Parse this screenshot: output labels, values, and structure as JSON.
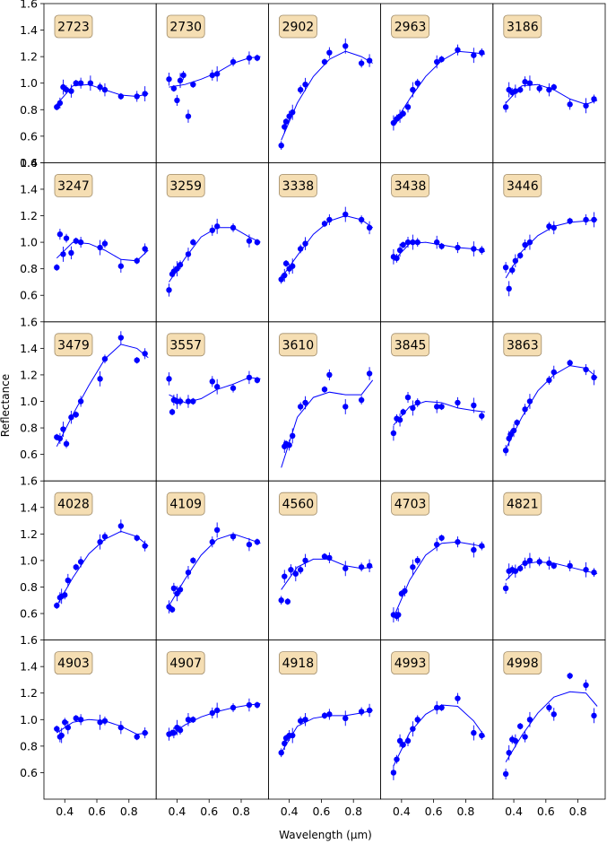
{
  "figure": {
    "xlabel": "Wavelength (μm)",
    "ylabel": "Reflectance"
  },
  "axes": {
    "xlim": [
      0.27,
      0.97
    ],
    "ylim": [
      0.4,
      1.6
    ],
    "xticks": [
      0.4,
      0.6,
      0.8
    ],
    "xtick_labels": [
      "0.4",
      "0.6",
      "0.8"
    ],
    "yticks": [
      0.4,
      0.6,
      0.8,
      1.0,
      1.2,
      1.4,
      1.6
    ],
    "ytick_labels": [
      "0.4",
      "0.6",
      "0.8",
      "1.0",
      "1.2",
      "1.4",
      "1.6"
    ],
    "grid": false,
    "layout": "5x5 grid of panels, shared axes"
  },
  "colors": {
    "data": "#0000ff",
    "label_box_fill": "#f5deb3",
    "label_box_stroke": "#a08c6a"
  },
  "chart_data": [
    {
      "type": "scatter",
      "title": "2723",
      "x": [
        0.35,
        0.37,
        0.39,
        0.41,
        0.44,
        0.47,
        0.5,
        0.56,
        0.62,
        0.65,
        0.75,
        0.85,
        0.9
      ],
      "y": [
        0.82,
        0.85,
        0.97,
        0.95,
        0.94,
        1.0,
        1.0,
        1.0,
        0.97,
        0.95,
        0.9,
        0.9,
        0.92
      ],
      "model": {
        "x": [
          0.35,
          0.45,
          0.55,
          0.65,
          0.75,
          0.85,
          0.92
        ],
        "y": [
          0.84,
          0.98,
          0.99,
          0.95,
          0.91,
          0.9,
          0.92
        ]
      }
    },
    {
      "type": "scatter",
      "title": "2730",
      "x": [
        0.35,
        0.38,
        0.4,
        0.42,
        0.44,
        0.47,
        0.5,
        0.62,
        0.65,
        0.75,
        0.85,
        0.9
      ],
      "y": [
        1.03,
        0.96,
        0.87,
        1.02,
        1.06,
        0.75,
        0.99,
        1.06,
        1.07,
        1.16,
        1.19,
        1.19
      ],
      "model": {
        "x": [
          0.35,
          0.45,
          0.55,
          0.65,
          0.75,
          0.85,
          0.92
        ],
        "y": [
          0.97,
          0.99,
          1.03,
          1.08,
          1.15,
          1.19,
          1.2
        ]
      }
    },
    {
      "type": "scatter",
      "title": "2902",
      "x": [
        0.35,
        0.37,
        0.38,
        0.4,
        0.42,
        0.47,
        0.5,
        0.62,
        0.65,
        0.75,
        0.85,
        0.9
      ],
      "y": [
        0.53,
        0.67,
        0.71,
        0.75,
        0.78,
        0.95,
        0.99,
        1.16,
        1.23,
        1.28,
        1.15,
        1.17
      ],
      "model": {
        "x": [
          0.35,
          0.45,
          0.55,
          0.65,
          0.75,
          0.85,
          0.92
        ],
        "y": [
          0.57,
          0.85,
          1.05,
          1.18,
          1.24,
          1.2,
          1.15
        ]
      }
    },
    {
      "type": "scatter",
      "title": "2963",
      "x": [
        0.35,
        0.37,
        0.39,
        0.41,
        0.44,
        0.47,
        0.5,
        0.62,
        0.65,
        0.75,
        0.85,
        0.9
      ],
      "y": [
        0.7,
        0.73,
        0.75,
        0.77,
        0.82,
        0.95,
        1.0,
        1.16,
        1.18,
        1.25,
        1.21,
        1.23
      ],
      "model": {
        "x": [
          0.35,
          0.45,
          0.55,
          0.65,
          0.75,
          0.85,
          0.92
        ],
        "y": [
          0.69,
          0.88,
          1.05,
          1.17,
          1.24,
          1.23,
          1.22
        ]
      }
    },
    {
      "type": "scatter",
      "title": "3186",
      "x": [
        0.35,
        0.37,
        0.39,
        0.41,
        0.44,
        0.47,
        0.5,
        0.56,
        0.62,
        0.65,
        0.75,
        0.85,
        0.9
      ],
      "y": [
        0.82,
        0.95,
        0.93,
        0.94,
        0.95,
        1.01,
        1.0,
        0.96,
        0.95,
        0.97,
        0.84,
        0.83,
        0.88
      ],
      "model": {
        "x": [
          0.35,
          0.45,
          0.55,
          0.65,
          0.75,
          0.85,
          0.92
        ],
        "y": [
          0.85,
          0.98,
          0.99,
          0.95,
          0.88,
          0.84,
          0.87
        ]
      }
    },
    {
      "type": "scatter",
      "title": "3247",
      "x": [
        0.35,
        0.37,
        0.39,
        0.41,
        0.44,
        0.47,
        0.5,
        0.62,
        0.65,
        0.75,
        0.85,
        0.9
      ],
      "y": [
        0.81,
        1.06,
        0.91,
        1.03,
        0.92,
        1.01,
        1.0,
        0.96,
        0.99,
        0.82,
        0.86,
        0.95
      ],
      "model": {
        "x": [
          0.35,
          0.45,
          0.55,
          0.65,
          0.75,
          0.85,
          0.92
        ],
        "y": [
          0.88,
          1.0,
          0.99,
          0.94,
          0.87,
          0.86,
          0.94
        ]
      }
    },
    {
      "type": "scatter",
      "title": "3259",
      "x": [
        0.35,
        0.37,
        0.38,
        0.4,
        0.42,
        0.47,
        0.5,
        0.62,
        0.65,
        0.75,
        0.85,
        0.9
      ],
      "y": [
        0.64,
        0.76,
        0.78,
        0.8,
        0.83,
        0.91,
        1.0,
        1.09,
        1.12,
        1.11,
        1.01,
        1.0
      ],
      "model": {
        "x": [
          0.35,
          0.45,
          0.55,
          0.65,
          0.75,
          0.85,
          0.92
        ],
        "y": [
          0.7,
          0.88,
          1.04,
          1.11,
          1.11,
          1.04,
          1.0
        ]
      }
    },
    {
      "type": "scatter",
      "title": "3338",
      "x": [
        0.35,
        0.37,
        0.38,
        0.4,
        0.42,
        0.47,
        0.5,
        0.62,
        0.65,
        0.75,
        0.85,
        0.9
      ],
      "y": [
        0.72,
        0.75,
        0.84,
        0.8,
        0.82,
        0.95,
        0.99,
        1.14,
        1.17,
        1.21,
        1.17,
        1.11
      ],
      "model": {
        "x": [
          0.35,
          0.45,
          0.55,
          0.65,
          0.75,
          0.85,
          0.92
        ],
        "y": [
          0.73,
          0.9,
          1.06,
          1.16,
          1.2,
          1.17,
          1.11
        ]
      }
    },
    {
      "type": "scatter",
      "title": "3438",
      "x": [
        0.35,
        0.37,
        0.39,
        0.41,
        0.44,
        0.47,
        0.5,
        0.62,
        0.65,
        0.75,
        0.85,
        0.9
      ],
      "y": [
        0.89,
        0.88,
        0.94,
        0.98,
        1.0,
        1.0,
        1.0,
        1.0,
        0.97,
        0.96,
        0.95,
        0.94
      ],
      "model": {
        "x": [
          0.35,
          0.45,
          0.55,
          0.65,
          0.75,
          0.85,
          0.92
        ],
        "y": [
          0.86,
          0.99,
          1.0,
          0.98,
          0.96,
          0.95,
          0.93
        ]
      }
    },
    {
      "type": "scatter",
      "title": "3446",
      "x": [
        0.35,
        0.37,
        0.39,
        0.41,
        0.44,
        0.47,
        0.5,
        0.62,
        0.65,
        0.75,
        0.85,
        0.9
      ],
      "y": [
        0.81,
        0.65,
        0.79,
        0.86,
        0.9,
        0.98,
        1.0,
        1.12,
        1.11,
        1.16,
        1.17,
        1.17
      ],
      "model": {
        "x": [
          0.35,
          0.45,
          0.55,
          0.65,
          0.75,
          0.85,
          0.92
        ],
        "y": [
          0.73,
          0.93,
          1.05,
          1.12,
          1.15,
          1.16,
          1.17
        ]
      }
    },
    {
      "type": "scatter",
      "title": "3479",
      "x": [
        0.35,
        0.37,
        0.39,
        0.41,
        0.44,
        0.47,
        0.5,
        0.62,
        0.65,
        0.75,
        0.85,
        0.9
      ],
      "y": [
        0.73,
        0.72,
        0.79,
        0.68,
        0.88,
        0.9,
        1.0,
        1.17,
        1.32,
        1.48,
        1.31,
        1.36
      ],
      "model": {
        "x": [
          0.35,
          0.45,
          0.55,
          0.65,
          0.75,
          0.85,
          0.92
        ],
        "y": [
          0.66,
          0.9,
          1.12,
          1.32,
          1.43,
          1.4,
          1.33
        ]
      }
    },
    {
      "type": "scatter",
      "title": "3557",
      "x": [
        0.35,
        0.37,
        0.38,
        0.4,
        0.42,
        0.47,
        0.5,
        0.62,
        0.65,
        0.75,
        0.85,
        0.9
      ],
      "y": [
        1.17,
        0.92,
        1.01,
        1.0,
        1.0,
        1.0,
        1.0,
        1.15,
        1.11,
        1.1,
        1.18,
        1.16
      ],
      "model": {
        "x": [
          0.35,
          0.45,
          0.55,
          0.65,
          0.75,
          0.85,
          0.92
        ],
        "y": [
          1.05,
          0.99,
          1.02,
          1.09,
          1.13,
          1.18,
          1.17
        ]
      }
    },
    {
      "type": "scatter",
      "title": "3610",
      "x": [
        0.35,
        0.37,
        0.38,
        0.4,
        0.42,
        0.47,
        0.5,
        0.62,
        0.65,
        0.75,
        0.85,
        0.9
      ],
      "y": [
        0.35,
        0.66,
        0.68,
        0.67,
        0.74,
        0.96,
        0.99,
        1.09,
        1.2,
        0.96,
        1.01,
        1.21
      ],
      "model": {
        "x": [
          0.35,
          0.45,
          0.55,
          0.65,
          0.75,
          0.85,
          0.92
        ],
        "y": [
          0.5,
          0.88,
          1.03,
          1.07,
          1.05,
          1.05,
          1.16
        ]
      }
    },
    {
      "type": "scatter",
      "title": "3845",
      "x": [
        0.35,
        0.37,
        0.39,
        0.41,
        0.44,
        0.47,
        0.5,
        0.62,
        0.65,
        0.75,
        0.85,
        0.9
      ],
      "y": [
        0.76,
        0.87,
        0.86,
        0.92,
        1.03,
        0.95,
        0.99,
        0.96,
        0.96,
        0.99,
        0.97,
        0.89
      ],
      "model": {
        "x": [
          0.35,
          0.45,
          0.55,
          0.65,
          0.75,
          0.85,
          0.92
        ],
        "y": [
          0.82,
          0.96,
          1.0,
          0.99,
          0.95,
          0.93,
          0.92
        ]
      }
    },
    {
      "type": "scatter",
      "title": "3863",
      "x": [
        0.35,
        0.37,
        0.38,
        0.4,
        0.42,
        0.47,
        0.5,
        0.62,
        0.65,
        0.75,
        0.85,
        0.9
      ],
      "y": [
        0.63,
        0.72,
        0.75,
        0.78,
        0.84,
        0.94,
        1.0,
        1.16,
        1.22,
        1.29,
        1.24,
        1.18
      ],
      "model": {
        "x": [
          0.35,
          0.45,
          0.55,
          0.65,
          0.75,
          0.85,
          0.92
        ],
        "y": [
          0.64,
          0.88,
          1.08,
          1.2,
          1.27,
          1.25,
          1.18
        ]
      }
    },
    {
      "type": "scatter",
      "title": "4028",
      "x": [
        0.35,
        0.37,
        0.38,
        0.4,
        0.42,
        0.47,
        0.5,
        0.62,
        0.65,
        0.75,
        0.85,
        0.9
      ],
      "y": [
        0.66,
        0.72,
        0.73,
        0.74,
        0.85,
        0.95,
        0.99,
        1.14,
        1.18,
        1.26,
        1.17,
        1.11
      ],
      "model": {
        "x": [
          0.35,
          0.45,
          0.55,
          0.65,
          0.75,
          0.85,
          0.92
        ],
        "y": [
          0.66,
          0.87,
          1.05,
          1.16,
          1.22,
          1.18,
          1.11
        ]
      }
    },
    {
      "type": "scatter",
      "title": "4109",
      "x": [
        0.35,
        0.37,
        0.38,
        0.4,
        0.42,
        0.47,
        0.5,
        0.62,
        0.65,
        0.75,
        0.85,
        0.9
      ],
      "y": [
        0.65,
        0.63,
        0.79,
        0.75,
        0.78,
        0.91,
        1.0,
        1.14,
        1.23,
        1.18,
        1.12,
        1.14
      ],
      "model": {
        "x": [
          0.35,
          0.45,
          0.55,
          0.65,
          0.75,
          0.85,
          0.92
        ],
        "y": [
          0.66,
          0.86,
          1.04,
          1.16,
          1.2,
          1.16,
          1.13
        ]
      }
    },
    {
      "type": "scatter",
      "title": "4560",
      "x": [
        0.35,
        0.37,
        0.39,
        0.41,
        0.44,
        0.47,
        0.5,
        0.62,
        0.65,
        0.75,
        0.85,
        0.9
      ],
      "y": [
        0.7,
        0.88,
        0.69,
        0.93,
        0.9,
        0.93,
        1.0,
        1.03,
        1.02,
        0.94,
        0.95,
        0.96
      ],
      "model": {
        "x": [
          0.35,
          0.45,
          0.55,
          0.65,
          0.75,
          0.85,
          0.92
        ],
        "y": [
          0.78,
          0.95,
          1.01,
          1.01,
          0.96,
          0.94,
          0.95
        ]
      }
    },
    {
      "type": "scatter",
      "title": "4703",
      "x": [
        0.35,
        0.37,
        0.38,
        0.4,
        0.42,
        0.47,
        0.5,
        0.62,
        0.65,
        0.75,
        0.85,
        0.9
      ],
      "y": [
        0.59,
        0.58,
        0.59,
        0.75,
        0.77,
        0.95,
        1.0,
        1.12,
        1.17,
        1.14,
        1.08,
        1.11
      ],
      "model": {
        "x": [
          0.35,
          0.45,
          0.55,
          0.65,
          0.75,
          0.85,
          0.92
        ],
        "y": [
          0.57,
          0.85,
          1.04,
          1.13,
          1.14,
          1.12,
          1.1
        ]
      }
    },
    {
      "type": "scatter",
      "title": "4821",
      "x": [
        0.35,
        0.37,
        0.39,
        0.41,
        0.44,
        0.47,
        0.5,
        0.56,
        0.62,
        0.65,
        0.75,
        0.85,
        0.9
      ],
      "y": [
        0.79,
        0.92,
        0.93,
        0.92,
        0.94,
        0.98,
        1.0,
        0.99,
        0.98,
        0.96,
        0.96,
        0.93,
        0.91
      ],
      "model": {
        "x": [
          0.35,
          0.45,
          0.55,
          0.65,
          0.75,
          0.85,
          0.92
        ],
        "y": [
          0.85,
          0.97,
          0.99,
          0.98,
          0.95,
          0.92,
          0.9
        ]
      }
    },
    {
      "type": "scatter",
      "title": "4903",
      "x": [
        0.35,
        0.37,
        0.38,
        0.4,
        0.42,
        0.47,
        0.5,
        0.62,
        0.65,
        0.75,
        0.85,
        0.9
      ],
      "y": [
        0.93,
        0.87,
        0.88,
        0.98,
        0.94,
        1.01,
        1.0,
        0.98,
        0.99,
        0.94,
        0.87,
        0.9
      ],
      "model": {
        "x": [
          0.35,
          0.45,
          0.55,
          0.65,
          0.75,
          0.85,
          0.92
        ],
        "y": [
          0.9,
          0.98,
          1.0,
          0.99,
          0.95,
          0.89,
          0.9
        ]
      }
    },
    {
      "type": "scatter",
      "title": "4907",
      "x": [
        0.35,
        0.37,
        0.38,
        0.4,
        0.42,
        0.47,
        0.5,
        0.62,
        0.65,
        0.75,
        0.85,
        0.9
      ],
      "y": [
        0.89,
        0.9,
        0.9,
        0.94,
        0.92,
        1.0,
        1.0,
        1.05,
        1.07,
        1.09,
        1.11,
        1.11
      ],
      "model": {
        "x": [
          0.35,
          0.45,
          0.55,
          0.65,
          0.75,
          0.85,
          0.92
        ],
        "y": [
          0.88,
          0.96,
          1.02,
          1.06,
          1.09,
          1.11,
          1.12
        ]
      }
    },
    {
      "type": "scatter",
      "title": "4918",
      "x": [
        0.35,
        0.37,
        0.38,
        0.4,
        0.42,
        0.47,
        0.5,
        0.62,
        0.65,
        0.75,
        0.85,
        0.9
      ],
      "y": [
        0.75,
        0.82,
        0.86,
        0.88,
        0.88,
        0.99,
        1.0,
        1.03,
        1.04,
        1.01,
        1.06,
        1.07
      ],
      "model": {
        "x": [
          0.35,
          0.45,
          0.55,
          0.65,
          0.75,
          0.85,
          0.92
        ],
        "y": [
          0.75,
          0.95,
          1.01,
          1.03,
          1.03,
          1.05,
          1.07
        ]
      }
    },
    {
      "type": "scatter",
      "title": "4993",
      "x": [
        0.35,
        0.37,
        0.39,
        0.41,
        0.44,
        0.47,
        0.5,
        0.62,
        0.65,
        0.75,
        0.85,
        0.9
      ],
      "y": [
        0.6,
        0.7,
        0.84,
        0.81,
        0.84,
        0.93,
        1.0,
        1.09,
        1.09,
        1.16,
        0.9,
        0.88
      ],
      "model": {
        "x": [
          0.35,
          0.45,
          0.55,
          0.65,
          0.75,
          0.85,
          0.92
        ],
        "y": [
          0.65,
          0.9,
          1.04,
          1.11,
          1.1,
          0.99,
          0.87
        ]
      }
    },
    {
      "type": "scatter",
      "title": "4998",
      "x": [
        0.35,
        0.37,
        0.39,
        0.41,
        0.44,
        0.47,
        0.5,
        0.62,
        0.65,
        0.75,
        0.85,
        0.9
      ],
      "y": [
        0.59,
        0.75,
        0.85,
        0.84,
        0.95,
        0.87,
        1.0,
        1.09,
        1.04,
        1.33,
        1.26,
        1.03
      ],
      "model": {
        "x": [
          0.35,
          0.45,
          0.55,
          0.65,
          0.75,
          0.85,
          0.92
        ],
        "y": [
          0.68,
          0.88,
          1.05,
          1.17,
          1.21,
          1.2,
          1.1
        ]
      }
    }
  ]
}
